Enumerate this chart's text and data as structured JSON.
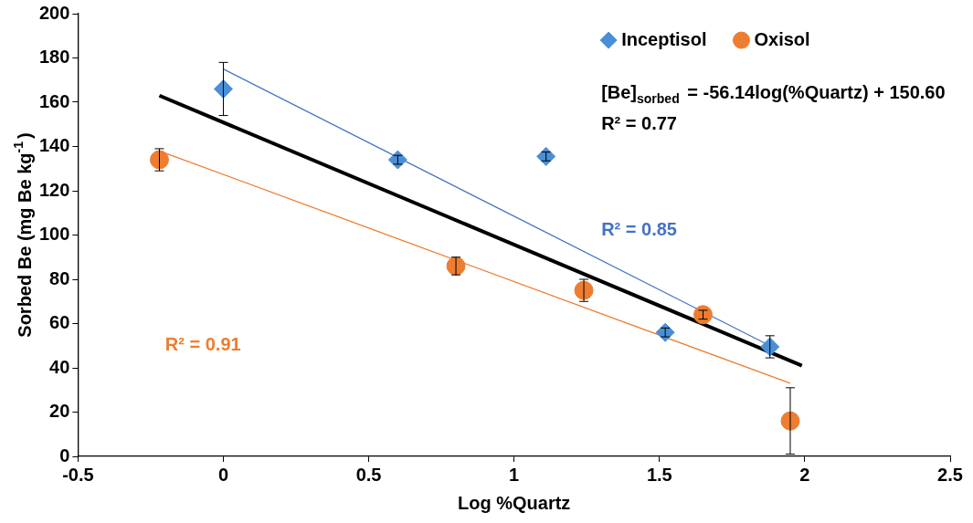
{
  "chart_data": {
    "type": "scatter",
    "xlabel": "Log %Quartz",
    "ylabel": "Sorbed Be (mg Be kg$^{-1}$)",
    "xlim": [
      -0.5,
      2.5
    ],
    "xticks": [
      -0.5,
      0,
      0.5,
      1,
      1.5,
      2,
      2.5
    ],
    "ylim": [
      0,
      200
    ],
    "yticks": [
      0,
      20,
      40,
      60,
      80,
      100,
      120,
      140,
      160,
      180,
      200
    ],
    "grid": false,
    "legend": "top right",
    "series": [
      {
        "name": "Inceptisol",
        "color": "#4a8fd6",
        "marker": "diamond",
        "x": [
          0,
          0.6,
          1.11,
          1.52,
          1.88
        ],
        "values": [
          166,
          134,
          135.5,
          56,
          49.5
        ],
        "errors": [
          12,
          2,
          2,
          2,
          5
        ]
      },
      {
        "name": "Oxisol",
        "color": "#ed7d31",
        "marker": "circle",
        "x": [
          -0.22,
          0.8,
          1.24,
          1.65,
          1.95
        ],
        "values": [
          134,
          86,
          75,
          64,
          16
        ],
        "errors": [
          5,
          4,
          5,
          2,
          15
        ]
      },
      {
        "type": "line",
        "color": "#4472c4",
        "marker": "none",
        "x": [
          0,
          1.88
        ],
        "values": [
          175,
          50
        ]
      },
      {
        "type": "line",
        "color": "#ed7d31",
        "marker": "none",
        "x": [
          -0.22,
          1.95
        ],
        "values": [
          138,
          33
        ]
      },
      {
        "type": "line",
        "color": "#000000",
        "marker": "none",
        "x": [
          -0.22,
          1.99
        ],
        "values": [
          163,
          41
        ]
      }
    ],
    "annotations": [
      "[Be]$_{sorbed}$ = -56.14log(%Quartz) + 150.60",
      "R² = 0.77",
      "R² = 0.85",
      "R² = 0.91"
    ]
  }
}
